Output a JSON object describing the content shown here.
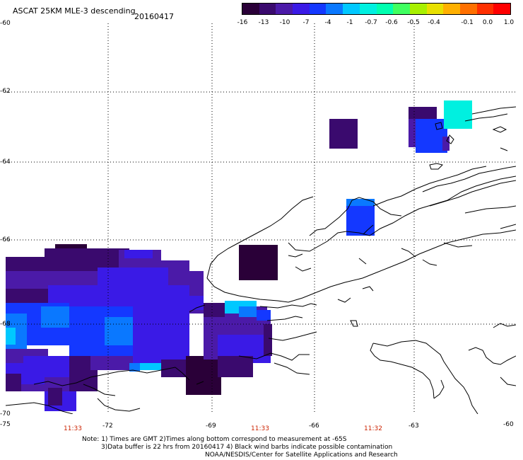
{
  "title": {
    "product": "ASCAT 25KM MLE-3 descending",
    "date": "20160417"
  },
  "colorbar": {
    "labels": [
      "-16",
      "-13",
      "-10",
      "-7",
      "-4",
      "-1",
      "-0.7",
      "-0.6",
      "-0.5",
      "-0.4",
      "-0.1",
      "0.0",
      "1.0"
    ],
    "colors": [
      "#2a0038",
      "#3a0a6e",
      "#4b1aa8",
      "#3a1ae6",
      "#1438ff",
      "#0a78ff",
      "#00c8ff",
      "#00f0e0",
      "#00ffb0",
      "#40ff60",
      "#a8f000",
      "#e8e000",
      "#ffb000",
      "#ff7000",
      "#ff3000",
      "#ff0000"
    ]
  },
  "map": {
    "lat_labels": [
      "-60",
      "-62",
      "-64",
      "-66",
      "-68",
      "-70"
    ],
    "lon_labels": [
      "-75",
      "-72",
      "-69",
      "-66",
      "-63",
      "-60"
    ],
    "pass_times": [
      "11:33",
      "11:33",
      "11:32"
    ],
    "time_color": "#cc2200",
    "grid": "dotted"
  },
  "notes": {
    "line1": "Note: 1) Times are GMT 2)Times along bottom correspond to measurement at -65S",
    "line2": "3)Data buffer is 22 hrs from 20160417 4) Black wind barbs indicate possible contamination",
    "line3": "NOAA/NESDIS/Center for Satellite Applications and Research"
  }
}
